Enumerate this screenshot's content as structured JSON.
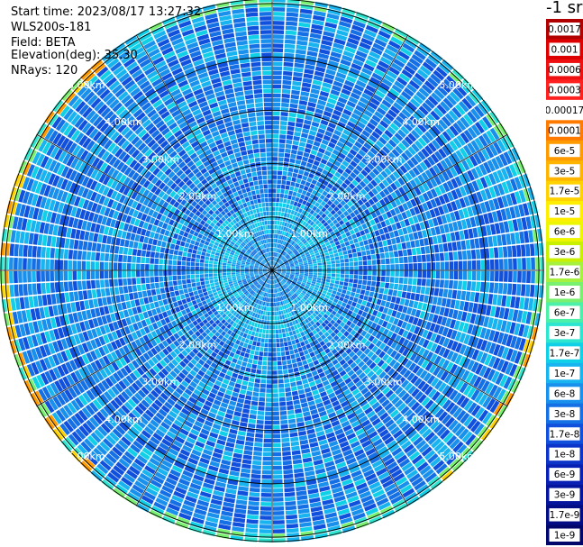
{
  "header": {
    "start_time": "Start time: 2023/08/17 13:27:32",
    "instrument": "WLS200s-181",
    "field": "Field: BETA",
    "elevation": "Elevation(deg): 35.30",
    "nrays": "NRays: 120"
  },
  "colorbar": {
    "units_label": "-1 sr",
    "levels": [
      "0.0017",
      "0.001",
      "0.0006",
      "0.0003",
      "0.00017",
      "0.0001",
      "6e-5",
      "3e-5",
      "1.7e-5",
      "1e-5",
      "6e-6",
      "3e-6",
      "1.7e-6",
      "1e-6",
      "6e-7",
      "3e-7",
      "1.7e-7",
      "1e-7",
      "6e-8",
      "3e-8",
      "1.7e-8",
      "1e-8",
      "6e-9",
      "3e-9",
      "1.7e-9",
      "1e-9"
    ],
    "colors": [
      "#b00000",
      "#dd0000",
      "#ee1010",
      "#ff2020",
      "#ffffff",
      "#ff7a00",
      "#ff9a00",
      "#ffb400",
      "#ffd200",
      "#ffee00",
      "#eef500",
      "#c8f000",
      "#a6f040",
      "#7af070",
      "#4df0a8",
      "#2ee6d0",
      "#10d0e8",
      "#18b4f0",
      "#1890ec",
      "#1470e4",
      "#1050dc",
      "#0c34c8",
      "#0820b4",
      "#04149c",
      "#020c84",
      "#00066a"
    ]
  },
  "chart_data": {
    "type": "heatmap",
    "projection": "polar PPI",
    "field": "BETA",
    "elevation_deg": 35.3,
    "nrays": 120,
    "range_rings_km": [
      1.0,
      2.0,
      3.0,
      4.0,
      5.0
    ],
    "ring_labels": [
      "1.00km",
      "2.00km",
      "3.00km",
      "4.00km",
      "5.00km"
    ],
    "azimuth_spokes_deg": [
      0,
      30,
      60,
      90,
      120,
      150,
      180,
      210,
      240,
      270,
      300,
      330
    ],
    "color_scale": "log",
    "value_range": [
      1e-09,
      0.0017
    ],
    "dominant_level": "1e-8"
  }
}
